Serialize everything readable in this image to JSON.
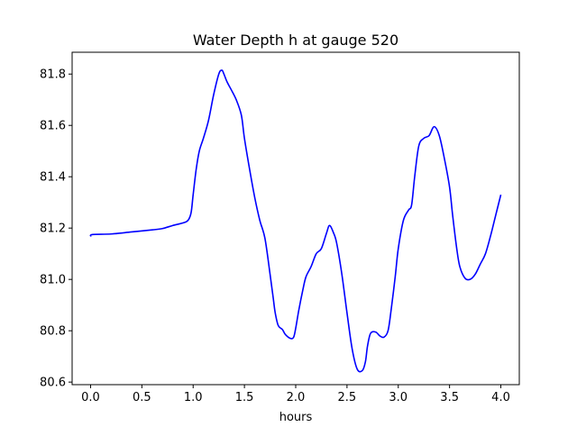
{
  "chart_data": {
    "type": "line",
    "title": "Water Depth h at gauge 520",
    "xlabel": "hours",
    "ylabel": "",
    "xlim": [
      -0.18,
      4.18
    ],
    "ylim": [
      80.59,
      81.885
    ],
    "grid": false,
    "legend": "none",
    "xticks": [
      0.0,
      0.5,
      1.0,
      1.5,
      2.0,
      2.5,
      3.0,
      3.5,
      4.0
    ],
    "xtick_labels": [
      "0.0",
      "0.5",
      "1.0",
      "1.5",
      "2.0",
      "2.5",
      "3.0",
      "3.5",
      "4.0"
    ],
    "yticks": [
      80.6,
      80.8,
      81.0,
      81.2,
      81.4,
      81.6,
      81.8
    ],
    "ytick_labels": [
      "80.6",
      "80.8",
      "81.0",
      "81.2",
      "81.4",
      "81.6",
      "81.8"
    ],
    "series": [
      {
        "color": "#0000ff",
        "x": [
          0.0,
          0.02,
          0.2,
          0.4,
          0.6,
          0.7,
          0.8,
          0.9,
          0.95,
          0.98,
          1.0,
          1.03,
          1.06,
          1.1,
          1.15,
          1.2,
          1.25,
          1.28,
          1.3,
          1.33,
          1.37,
          1.42,
          1.47,
          1.5,
          1.55,
          1.6,
          1.65,
          1.7,
          1.75,
          1.78,
          1.8,
          1.83,
          1.87,
          1.9,
          1.95,
          1.98,
          2.0,
          2.03,
          2.07,
          2.1,
          2.15,
          2.2,
          2.25,
          2.3,
          2.33,
          2.37,
          2.4,
          2.45,
          2.5,
          2.55,
          2.6,
          2.65,
          2.68,
          2.7,
          2.73,
          2.78,
          2.82,
          2.86,
          2.9,
          2.93,
          2.97,
          3.0,
          3.05,
          3.1,
          3.13,
          3.16,
          3.2,
          3.25,
          3.3,
          3.35,
          3.4,
          3.45,
          3.5,
          3.53,
          3.57,
          3.6,
          3.65,
          3.7,
          3.75,
          3.8,
          3.85,
          3.9,
          3.95,
          4.0
        ],
        "y": [
          81.167,
          81.175,
          81.177,
          81.185,
          81.193,
          81.198,
          81.21,
          81.22,
          81.23,
          81.26,
          81.33,
          81.43,
          81.5,
          81.55,
          81.62,
          81.72,
          81.8,
          81.815,
          81.8,
          81.77,
          81.74,
          81.7,
          81.64,
          81.55,
          81.43,
          81.32,
          81.23,
          81.16,
          81.02,
          80.93,
          80.87,
          80.82,
          80.805,
          80.785,
          80.77,
          80.775,
          80.81,
          80.88,
          80.96,
          81.01,
          81.05,
          81.1,
          81.12,
          81.18,
          81.21,
          81.18,
          81.14,
          81.02,
          80.87,
          80.73,
          80.65,
          80.645,
          80.68,
          80.74,
          80.79,
          80.795,
          80.78,
          80.775,
          80.8,
          80.88,
          81.01,
          81.12,
          81.23,
          81.27,
          81.29,
          81.4,
          81.52,
          81.55,
          81.56,
          81.595,
          81.56,
          81.47,
          81.36,
          81.25,
          81.12,
          81.05,
          81.005,
          81.0,
          81.02,
          81.06,
          81.1,
          81.17,
          81.25,
          81.33
        ]
      }
    ]
  }
}
